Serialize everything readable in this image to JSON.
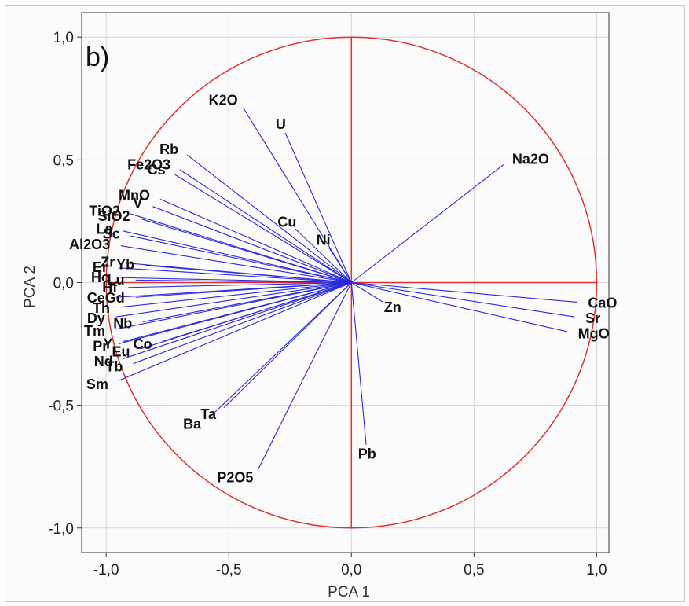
{
  "chart_data": {
    "type": "scatter",
    "panel_label": "b)",
    "xlabel": "PCA 1",
    "ylabel": "PCA 2",
    "xlim": [
      -1.1,
      1.05
    ],
    "ylim": [
      -1.1,
      1.1
    ],
    "xticks": [
      -1.0,
      -0.5,
      0.0,
      0.5,
      1.0
    ],
    "xtick_labels": [
      "-1,0",
      "-0,5",
      "0,0",
      "0,5",
      "1,0"
    ],
    "yticks": [
      1.0,
      0.5,
      0.0,
      -0.5,
      -1.0
    ],
    "ytick_labels": [
      "1,0",
      "0,5",
      "0,0",
      "-0,5",
      "-1,0"
    ],
    "grid": true,
    "unit_circle": true,
    "colors": {
      "vectors": "#2a2ae0",
      "circle": "#e03030",
      "grid": "#d6d6d6"
    },
    "vectors": [
      {
        "name": "K2O",
        "x": -0.44,
        "y": 0.71
      },
      {
        "name": "U",
        "x": -0.27,
        "y": 0.61
      },
      {
        "name": "Na2O",
        "x": 0.62,
        "y": 0.48
      },
      {
        "name": "Rb",
        "x": -0.67,
        "y": 0.52
      },
      {
        "name": "Fe2O3",
        "x": -0.7,
        "y": 0.46
      },
      {
        "name": "Cs",
        "x": -0.72,
        "y": 0.44
      },
      {
        "name": "MnO",
        "x": -0.78,
        "y": 0.34
      },
      {
        "name": "V",
        "x": -0.81,
        "y": 0.31
      },
      {
        "name": "TiO2",
        "x": -0.9,
        "y": 0.28
      },
      {
        "name": "SiO2",
        "x": -0.86,
        "y": 0.26
      },
      {
        "name": "Cu",
        "x": -0.23,
        "y": 0.22
      },
      {
        "name": "La",
        "x": -0.93,
        "y": 0.21
      },
      {
        "name": "Sc",
        "x": -0.9,
        "y": 0.19
      },
      {
        "name": "Ni",
        "x": -0.09,
        "y": 0.14
      },
      {
        "name": "Al2O3",
        "x": -0.94,
        "y": 0.15
      },
      {
        "name": "Zr",
        "x": -0.92,
        "y": 0.08
      },
      {
        "name": "Yb",
        "x": -0.84,
        "y": 0.07
      },
      {
        "name": "Er",
        "x": -0.95,
        "y": 0.06
      },
      {
        "name": "Ho",
        "x": -0.94,
        "y": 0.02
      },
      {
        "name": "Lu",
        "x": -0.88,
        "y": 0.01
      },
      {
        "name": "Hf",
        "x": -0.91,
        "y": -0.02
      },
      {
        "name": "Ce",
        "x": -0.96,
        "y": -0.06
      },
      {
        "name": "Gd",
        "x": -0.88,
        "y": -0.06
      },
      {
        "name": "Th",
        "x": -0.94,
        "y": -0.1
      },
      {
        "name": "Dy",
        "x": -0.96,
        "y": -0.14
      },
      {
        "name": "Nb",
        "x": -0.85,
        "y": -0.16
      },
      {
        "name": "Tm",
        "x": -0.96,
        "y": -0.19
      },
      {
        "name": "Y",
        "x": -0.93,
        "y": -0.24
      },
      {
        "name": "Pr",
        "x": -0.95,
        "y": -0.25
      },
      {
        "name": "Eu",
        "x": -0.86,
        "y": -0.27
      },
      {
        "name": "Co",
        "x": -0.77,
        "y": -0.24
      },
      {
        "name": "Nd",
        "x": -0.93,
        "y": -0.31
      },
      {
        "name": "Tb",
        "x": -0.89,
        "y": -0.33
      },
      {
        "name": "Sm",
        "x": -0.95,
        "y": -0.4
      },
      {
        "name": "Ta",
        "x": -0.52,
        "y": -0.51
      },
      {
        "name": "Ba",
        "x": -0.58,
        "y": -0.55
      },
      {
        "name": "P2O5",
        "x": -0.38,
        "y": -0.76
      },
      {
        "name": "Pb",
        "x": 0.06,
        "y": -0.66
      },
      {
        "name": "Zn",
        "x": 0.13,
        "y": -0.08
      },
      {
        "name": "CaO",
        "x": 0.92,
        "y": -0.08
      },
      {
        "name": "Sr",
        "x": 0.91,
        "y": -0.14
      },
      {
        "name": "MgO",
        "x": 0.88,
        "y": -0.2
      }
    ]
  }
}
